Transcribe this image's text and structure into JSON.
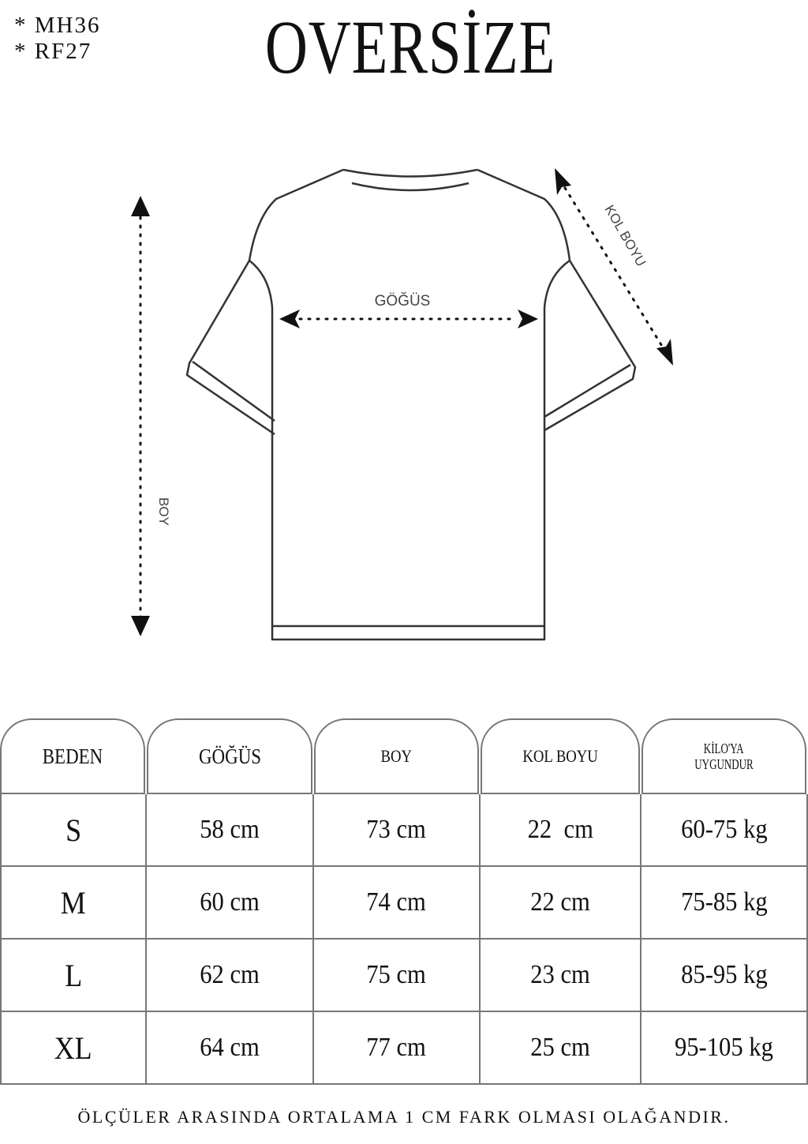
{
  "codes": [
    "* MH36",
    "* RF27"
  ],
  "title": "OVERSİZE",
  "diagram": {
    "chest_label": "GÖĞÜS",
    "length_label": "BOY",
    "sleeve_label": "KOL BOYU"
  },
  "table": {
    "headers": [
      "BEDEN",
      "GÖĞÜS",
      "BOY",
      "KOL BOYU",
      "KİLO'YA",
      "UYGUNDUR"
    ],
    "rows": [
      [
        "S",
        "58 cm",
        "73 cm",
        "22  cm",
        "60-75 kg"
      ],
      [
        "M",
        "60 cm",
        "74 cm",
        "22 cm",
        "75-85 kg"
      ],
      [
        "L",
        "62 cm",
        "75 cm",
        "23 cm",
        "85-95 kg"
      ],
      [
        "XL",
        "64 cm",
        "77 cm",
        "25 cm",
        "95-105 kg"
      ]
    ]
  },
  "footer": "ÖLÇÜLER ARASINDA ORTALAMA 1 CM FARK OLMASI OLAĞANDIR."
}
